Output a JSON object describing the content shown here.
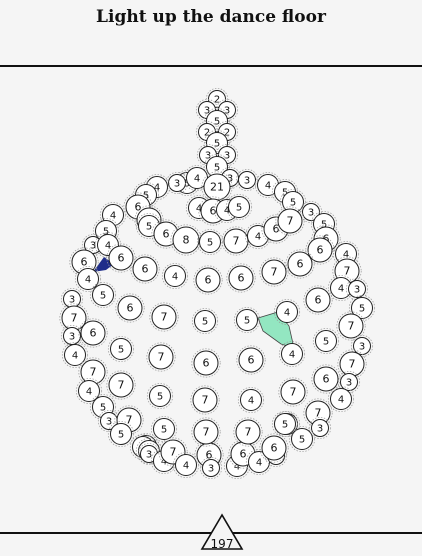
{
  "header": {
    "title": "Light up the dance floor"
  },
  "footer": {
    "level": "197"
  },
  "colors": {
    "lit_blue": "#1f2d8a",
    "lit_green": "#93e6c1",
    "cell_stroke": "#222222",
    "background": "#f5f5f5"
  },
  "cells": [
    [
      "2",
      217,
      99
    ],
    [
      "3",
      207,
      110
    ],
    [
      "3",
      227,
      110
    ],
    [
      "5",
      217,
      121
    ],
    [
      "2",
      207,
      132
    ],
    [
      "2",
      227,
      132
    ],
    [
      "5",
      217,
      143
    ],
    [
      "3",
      208,
      155
    ],
    [
      "3",
      227,
      155
    ],
    [
      "5",
      217,
      167
    ],
    [
      "5",
      187,
      183
    ],
    [
      "3",
      177,
      183
    ],
    [
      "4",
      157,
      187
    ],
    [
      "5",
      146,
      195
    ],
    [
      "6",
      138,
      207
    ],
    [
      "4",
      197,
      178
    ],
    [
      "3",
      230,
      178
    ],
    [
      "3",
      247,
      180
    ],
    [
      "4",
      268,
      185
    ],
    [
      "5",
      285,
      192
    ],
    [
      "5",
      293,
      202
    ],
    [
      "3",
      311,
      212
    ],
    [
      "21",
      217,
      187
    ],
    [
      "4",
      199,
      208
    ],
    [
      "6",
      213,
      211
    ],
    [
      "4",
      227,
      210
    ],
    [
      "5",
      239,
      207
    ],
    [
      "6",
      149,
      220
    ],
    [
      "5",
      149,
      226
    ],
    [
      "4",
      113,
      215
    ],
    [
      "5",
      106,
      231
    ],
    [
      "3",
      93,
      245
    ],
    [
      "4",
      108,
      245
    ],
    [
      "6",
      84,
      262
    ],
    [
      "4",
      88,
      279
    ],
    [
      "6",
      121,
      258
    ],
    [
      "6",
      166,
      234
    ],
    [
      "8",
      186,
      240
    ],
    [
      "5",
      210,
      242
    ],
    [
      "7",
      236,
      241
    ],
    [
      "4",
      258,
      236
    ],
    [
      "6",
      276,
      229
    ],
    [
      "7",
      290,
      221
    ],
    [
      "5",
      324,
      224
    ],
    [
      "6",
      326,
      239
    ],
    [
      "4",
      346,
      254
    ],
    [
      "7",
      347,
      271
    ],
    [
      "4",
      341,
      288
    ],
    [
      "3",
      357,
      289
    ],
    [
      "5",
      362,
      308
    ],
    [
      "7",
      351,
      326
    ],
    [
      "3",
      362,
      346
    ],
    [
      "7",
      352,
      364
    ],
    [
      "3",
      349,
      382
    ],
    [
      "4",
      341,
      399
    ],
    [
      "7",
      318,
      413
    ],
    [
      "3",
      320,
      428
    ],
    [
      "6",
      320,
      250
    ],
    [
      "6",
      300,
      264
    ],
    [
      "7",
      274,
      272
    ],
    [
      "6",
      241,
      278
    ],
    [
      "6",
      208,
      280
    ],
    [
      "4",
      175,
      276
    ],
    [
      "6",
      145,
      269
    ],
    [
      "5",
      103,
      295
    ],
    [
      "3",
      72,
      299
    ],
    [
      "7",
      74,
      318
    ],
    [
      "3",
      72,
      336
    ],
    [
      "6",
      93,
      333
    ],
    [
      "4",
      75,
      355
    ],
    [
      "7",
      93,
      372
    ],
    [
      "4",
      89,
      391
    ],
    [
      "5",
      103,
      407
    ],
    [
      "3",
      109,
      421
    ],
    [
      "7",
      129,
      420
    ],
    [
      "5",
      121,
      434
    ],
    [
      "5",
      146,
      446
    ],
    [
      "5",
      143,
      447
    ],
    [
      "4",
      149,
      451
    ],
    [
      "3",
      149,
      454
    ],
    [
      "4",
      164,
      461
    ],
    [
      "7",
      173,
      452
    ],
    [
      "4",
      186,
      465
    ],
    [
      "6",
      209,
      455
    ],
    [
      "3",
      211,
      468
    ],
    [
      "4",
      237,
      466
    ],
    [
      "6",
      243,
      454
    ],
    [
      "4",
      259,
      462
    ],
    [
      "3",
      276,
      456
    ],
    [
      "6",
      274,
      448
    ],
    [
      "5",
      287,
      424
    ],
    [
      "5",
      302,
      439
    ],
    [
      "6",
      130,
      308
    ],
    [
      "7",
      164,
      317
    ],
    [
      "5",
      205,
      321
    ],
    [
      "5",
      247,
      320
    ],
    [
      "4",
      287,
      312
    ],
    [
      "6",
      318,
      300
    ],
    [
      "5",
      326,
      341
    ],
    [
      "4",
      292,
      354
    ],
    [
      "6",
      251,
      360
    ],
    [
      "6",
      206,
      363
    ],
    [
      "7",
      161,
      357
    ],
    [
      "5",
      121,
      349
    ],
    [
      "7",
      121,
      385
    ],
    [
      "5",
      160,
      396
    ],
    [
      "7",
      205,
      400
    ],
    [
      "4",
      251,
      400
    ],
    [
      "7",
      293,
      392
    ],
    [
      "6",
      326,
      379
    ],
    [
      "5",
      164,
      429
    ],
    [
      "7",
      206,
      432
    ],
    [
      "7",
      248,
      432
    ],
    [
      "5",
      285,
      424
    ]
  ]
}
